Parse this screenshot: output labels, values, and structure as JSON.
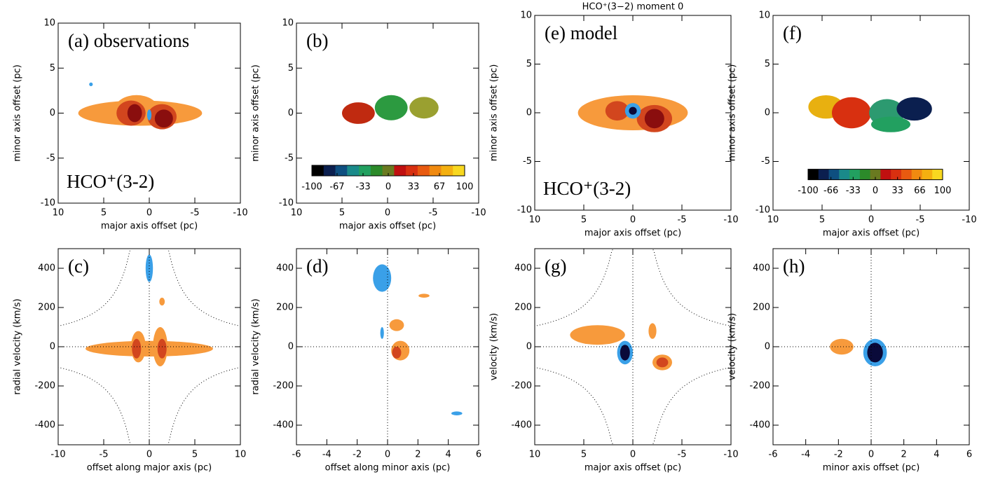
{
  "chart_data": [
    {
      "type": "contour",
      "panel_label": "(a) observations",
      "annotation": "HCO⁺(3-2)",
      "xlabel": "major axis offset (pc)",
      "ylabel": "minor axis offset (pc)",
      "xlim": [
        10,
        -10
      ],
      "ylim": [
        -10,
        10
      ],
      "xticks": [
        10,
        5,
        0,
        -5,
        -10
      ],
      "yticks": [
        -10,
        -5,
        0,
        5,
        10
      ]
    },
    {
      "type": "contour",
      "panel_label": "(b)",
      "xlabel": "major axis offset (pc)",
      "ylabel": "minor axis offset (pc)",
      "xlim": [
        10,
        -10
      ],
      "ylim": [
        -10,
        10
      ],
      "xticks": [
        10,
        5,
        0,
        -5,
        -10
      ],
      "yticks": [
        -10,
        -5,
        0,
        5,
        10
      ],
      "colorbar": {
        "lim": [
          -100,
          100
        ],
        "ticks": [
          -100,
          -67,
          -33,
          0,
          33,
          67,
          100
        ],
        "colors": [
          "#000000",
          "#0b1f4f",
          "#0e4f80",
          "#1a8a8a",
          "#22a060",
          "#2c8a2a",
          "#6a7a20",
          "#c01010",
          "#d83010",
          "#e85a10",
          "#f08a10",
          "#f4b010",
          "#f8d820"
        ]
      }
    },
    {
      "type": "contour",
      "panel_label": "(c)",
      "xlabel": "offset along major axis (pc)",
      "ylabel": "radial velocity (km/s)",
      "xlim": [
        -10,
        10
      ],
      "ylim": [
        -500,
        500
      ],
      "xticks": [
        -10,
        -5,
        0,
        5,
        10
      ],
      "yticks": [
        -400,
        -200,
        0,
        200,
        400
      ]
    },
    {
      "type": "contour",
      "panel_label": "(d)",
      "xlabel": "offset along minor axis (pc)",
      "ylabel": "radial velocity (km/s)",
      "xlim": [
        -6,
        6
      ],
      "ylim": [
        -500,
        500
      ],
      "xticks": [
        -6,
        -4,
        -2,
        0,
        2,
        4,
        6
      ],
      "yticks": [
        -400,
        -200,
        0,
        200,
        400
      ]
    },
    {
      "type": "contour",
      "title": "HCO⁺(3−2) moment 0",
      "panel_label": "(e)  model",
      "annotation": "HCO⁺(3-2)",
      "xlabel": "major axis offset (pc)",
      "ylabel": "minor axis offset (pc)",
      "xlim": [
        10,
        -10
      ],
      "ylim": [
        -10,
        10
      ],
      "xticks": [
        10,
        5,
        0,
        -5,
        -10
      ],
      "yticks": [
        -10,
        -5,
        0,
        5,
        10
      ]
    },
    {
      "type": "contour",
      "panel_label": "(f)",
      "xlabel": "major axis offset (pc)",
      "ylabel": "minor axis offset (pc)",
      "xlim": [
        10,
        -10
      ],
      "ylim": [
        -10,
        10
      ],
      "xticks": [
        10,
        5,
        0,
        -5,
        -10
      ],
      "yticks": [
        -10,
        -5,
        0,
        5,
        10
      ],
      "colorbar": {
        "lim": [
          -100,
          100
        ],
        "ticks": [
          -100,
          -66,
          -33,
          0,
          33,
          66,
          100
        ],
        "colors": [
          "#000000",
          "#0b1f4f",
          "#0e4f80",
          "#1a8a8a",
          "#22a060",
          "#2c8a2a",
          "#6a7a20",
          "#c01010",
          "#d83010",
          "#e85a10",
          "#f08a10",
          "#f4b010",
          "#f8d820"
        ]
      }
    },
    {
      "type": "contour",
      "panel_label": "(g)",
      "xlabel": "major axis offset (pc)",
      "ylabel": "velocity (km/s)",
      "xlim": [
        10,
        -10
      ],
      "ylim": [
        -500,
        500
      ],
      "xticks": [
        10,
        5,
        0,
        -5,
        -10
      ],
      "yticks": [
        -400,
        -200,
        0,
        200,
        400
      ]
    },
    {
      "type": "contour",
      "panel_label": "(h)",
      "xlabel": "minor axis offset (pc)",
      "ylabel": "velocity (km/s)",
      "xlim": [
        -6,
        6
      ],
      "ylim": [
        -500,
        500
      ],
      "xticks": [
        -6,
        -4,
        -2,
        0,
        2,
        4,
        6
      ],
      "yticks": [
        -400,
        -200,
        0,
        200,
        400
      ]
    }
  ]
}
